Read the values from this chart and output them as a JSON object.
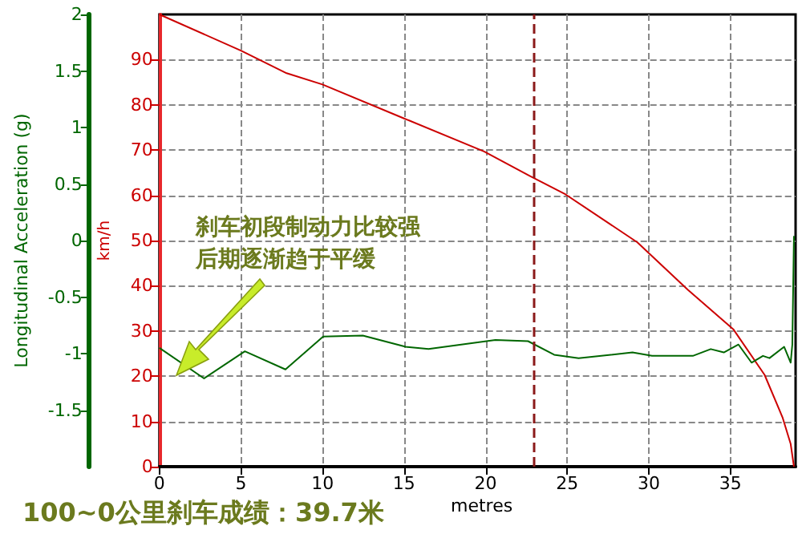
{
  "chart_data": {
    "type": "line",
    "xlabel": "metres",
    "ylabel": "km/h",
    "y2label": "Longitudinal Acceleration (g)",
    "annotations": [
      "刹车初段制动力比较强",
      "后期逐渐趋于平缓",
      "100~0公里刹车成绩：39.7米"
    ],
    "xlim": [
      0,
      39
    ],
    "xticks": [
      0,
      5,
      10,
      15,
      20,
      25,
      30,
      35
    ],
    "ylim": [
      0,
      100
    ],
    "yticks": [
      0,
      10,
      20,
      30,
      40,
      50,
      60,
      70,
      80,
      90
    ],
    "y2lim": [
      -2,
      2
    ],
    "y2ticks": [
      -1.5,
      -1,
      -0.5,
      0,
      0.5,
      1,
      1.5,
      2
    ],
    "grid": true,
    "marker": "none",
    "line_style": "solid",
    "ref_lines": [
      {
        "axis": "x",
        "value": 22.9,
        "color": "#8b1a1a",
        "line_style": "dashed"
      }
    ],
    "series": [
      {
        "color": "#cc0000",
        "x": [
          0,
          5,
          7.8,
          10,
          15,
          19.9,
          22.7,
          24.9,
          29.3,
          32.4,
          35.2,
          37.1,
          38.2,
          38.7,
          38.9
        ],
        "values": [
          100,
          92,
          87,
          84.5,
          77,
          69.7,
          64.3,
          60.2,
          49.6,
          39.1,
          30.3,
          20.3,
          10.9,
          5,
          0
        ]
      },
      {
        "color": "#006600",
        "axis": "y2",
        "x": [
          0,
          2.74,
          5.24,
          7.73,
          10.04,
          12.47,
          15.1,
          16.5,
          20.6,
          22.6,
          24.2,
          25.7,
          29.0,
          30.2,
          32.7,
          33.8,
          34.6,
          35.5,
          36.3,
          37.0,
          37.4,
          38.3,
          38.7,
          38.8,
          38.9
        ],
        "values": [
          -0.95,
          -1.22,
          -0.98,
          -1.14,
          -0.85,
          -0.84,
          -0.94,
          -0.96,
          -0.88,
          -0.89,
          -1.01,
          -1.04,
          -0.99,
          -1.02,
          -1.02,
          -0.96,
          -0.99,
          -0.92,
          -1.08,
          -1.02,
          -1.04,
          -0.94,
          -1.08,
          -0.92,
          0.04
        ]
      }
    ]
  }
}
